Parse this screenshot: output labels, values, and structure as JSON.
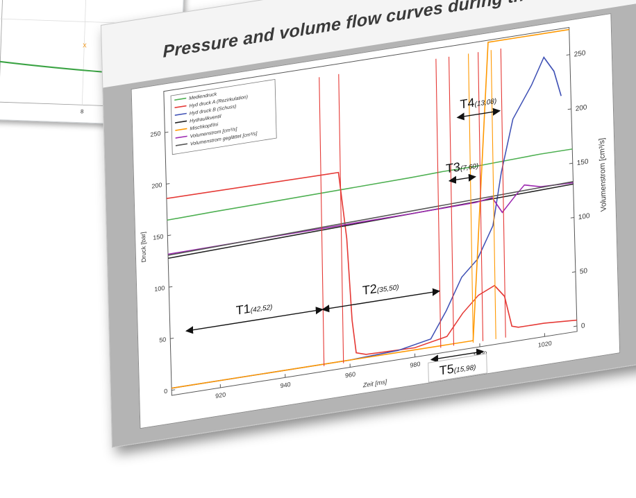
{
  "title": "Pressure and volume flow curves during the shot",
  "background_chart": {
    "tick_label": "8",
    "marker": "x"
  },
  "chart_data": {
    "type": "line",
    "xlabel": "Zeit [ms]",
    "ylabel": "Druck [bar]",
    "y2label": "Volumenstrom [cm³/s]",
    "xlim": [
      905,
      1030
    ],
    "ylim": [
      -5,
      290
    ],
    "y2lim": [
      -5,
      275
    ],
    "x_ticks": [
      "920",
      "940",
      "960",
      "980",
      "1000",
      "1020"
    ],
    "y_ticks": [
      "0",
      "50",
      "100",
      "150",
      "200",
      "250"
    ],
    "y2_ticks": [
      "0",
      "50",
      "100",
      "150",
      "200",
      "250"
    ],
    "legend_position": "top-left",
    "grid": false,
    "series": [
      {
        "name": "Mediendruck",
        "color": "#4caf50",
        "axis": "left",
        "x": [
          905,
          920,
          940,
          960,
          980,
          990,
          998,
          1000,
          1010,
          1020,
          1030
        ],
        "y": [
          165,
          166,
          167,
          168,
          169,
          170,
          170,
          170,
          171,
          172,
          172
        ]
      },
      {
        "name": "Hyd druck A (Rezirkulation)",
        "color": "#e53935",
        "axis": "left",
        "x": [
          905,
          955,
          958,
          960,
          961,
          962,
          965,
          980,
          990,
          995,
          1000,
          1005,
          1008,
          1010,
          1012,
          1020,
          1030
        ],
        "y": [
          186,
          185,
          185,
          120,
          40,
          8,
          5,
          4,
          10,
          30,
          45,
          52,
          40,
          10,
          8,
          8,
          6
        ]
      },
      {
        "name": "Hyd druck B (Schuss)",
        "color": "#3f51b5",
        "axis": "left",
        "x": [
          905,
          960,
          975,
          985,
          990,
          995,
          1000,
          1005,
          1008,
          1012,
          1018,
          1022,
          1025,
          1027
        ],
        "y": [
          2,
          2,
          4,
          10,
          35,
          65,
          80,
          110,
          160,
          210,
          240,
          265,
          250,
          225
        ]
      },
      {
        "name": "Hydraulikventil",
        "color": "#222222",
        "axis": "left",
        "x": [
          905,
          1030
        ],
        "y": [
          128,
          138
        ]
      },
      {
        "name": "Mischkopf/Ini",
        "color": "#ff9800",
        "axis": "left",
        "x": [
          905,
          990,
          998,
          1005,
          1030
        ],
        "y": [
          2,
          2,
          2,
          288,
          288
        ]
      },
      {
        "name": "Volumenstrom [cm³/s]",
        "color": "#9c27b0",
        "axis": "right",
        "x": [
          905,
          940,
          980,
          1000,
          1005,
          1008,
          1012,
          1015,
          1020,
          1030
        ],
        "y": [
          125,
          126,
          127,
          128,
          130,
          115,
          128,
          137,
          133,
          132
        ]
      },
      {
        "name": "Volumenstrom geglättet [cm³/s]",
        "color": "#555555",
        "axis": "right",
        "x": [
          905,
          1030
        ],
        "y": [
          124,
          133
        ]
      }
    ],
    "annotations": [
      {
        "label": "T1",
        "value": "(42,52)",
        "x_start": 910,
        "x_end": 952,
        "y": 55
      },
      {
        "label": "T2",
        "value": "(35,50)",
        "x_start": 952,
        "x_end": 988,
        "y": 55
      },
      {
        "label": "T3",
        "value": "(7,60)",
        "x_start": 992,
        "x_end": 1000,
        "y": 160
      },
      {
        "label": "T4",
        "value": "(13,08)",
        "x_start": 995,
        "x_end": 1008,
        "y": 220
      },
      {
        "label": "T5",
        "value": "(15,98)",
        "x_start": 985,
        "x_end": 1001,
        "y": -10
      }
    ]
  }
}
